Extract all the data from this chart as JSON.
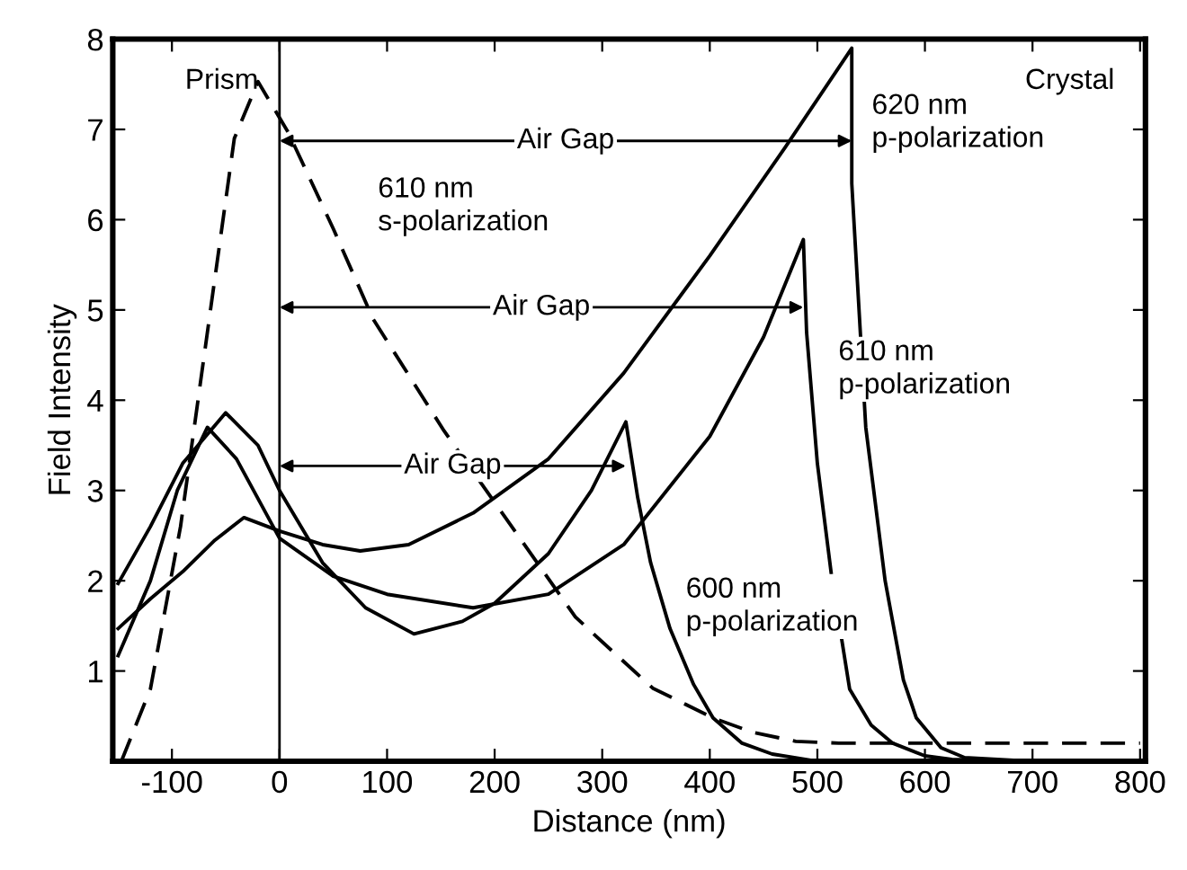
{
  "chart_data": {
    "type": "line",
    "xlabel": "Distance (nm)",
    "ylabel": "Field Intensity",
    "xlim": [
      -155,
      805
    ],
    "ylim": [
      0,
      8
    ],
    "xticks": [
      -100,
      0,
      100,
      200,
      300,
      400,
      500,
      600,
      700,
      800
    ],
    "yticks": [
      1,
      2,
      3,
      4,
      5,
      6,
      7,
      8
    ],
    "grid": false,
    "marker": "none",
    "ref_lines": [
      {
        "axis": "x",
        "value": 0,
        "color": "#000000",
        "line_style": "solid"
      }
    ],
    "annotations": [
      "Prism",
      "Crystal",
      "Air Gap",
      "Air Gap",
      "Air Gap"
    ],
    "series": [
      {
        "name": "620 nm\np-polarization",
        "color": "#000000",
        "line_style": "solid",
        "x": [
          -150,
          -120,
          -90,
          -60,
          -33,
          0,
          40,
          75,
          120,
          180,
          250,
          320,
          400,
          470,
          532,
          532,
          545,
          563,
          580,
          592,
          615,
          637,
          700
        ],
        "values": [
          1.47,
          1.8,
          2.1,
          2.45,
          2.7,
          2.55,
          2.4,
          2.33,
          2.4,
          2.75,
          3.35,
          4.3,
          5.6,
          6.8,
          7.9,
          6.4,
          3.7,
          2.0,
          0.9,
          0.48,
          0.15,
          0.04,
          0.0
        ]
      },
      {
        "name": "610 nm\np-polarization",
        "color": "#000000",
        "line_style": "solid",
        "x": [
          -150,
          -120,
          -95,
          -67,
          -40,
          0,
          50,
          100,
          180,
          250,
          320,
          400,
          450,
          487,
          490,
          500,
          513,
          530,
          550,
          570,
          600,
          625,
          700
        ],
        "values": [
          1.17,
          2.0,
          3.0,
          3.7,
          3.35,
          2.47,
          2.05,
          1.85,
          1.7,
          1.85,
          2.4,
          3.6,
          4.7,
          5.78,
          4.75,
          3.3,
          2.07,
          0.8,
          0.4,
          0.2,
          0.06,
          0.02,
          0.0
        ]
      },
      {
        "name": "600 nm\np-polarization",
        "color": "#000000",
        "line_style": "solid",
        "x": [
          -150,
          -120,
          -90,
          -50,
          -20,
          0,
          40,
          80,
          125,
          170,
          200,
          250,
          290,
          322,
          333,
          345,
          363,
          385,
          403,
          430,
          458,
          500
        ],
        "values": [
          1.97,
          2.6,
          3.3,
          3.86,
          3.5,
          3.0,
          2.2,
          1.7,
          1.41,
          1.55,
          1.75,
          2.3,
          3.0,
          3.76,
          2.92,
          2.2,
          1.47,
          0.85,
          0.48,
          0.2,
          0.08,
          0.0
        ]
      },
      {
        "name": "610 nm\ns-polarization",
        "color": "#000000",
        "line_style": "dashed",
        "x": [
          -147,
          -120,
          -92,
          -63,
          -42,
          -20,
          8,
          50,
          87,
          153,
          220,
          275,
          292,
          347,
          403,
          440,
          480,
          520,
          800
        ],
        "values": [
          0.0,
          0.8,
          2.6,
          5.1,
          6.9,
          7.53,
          6.97,
          5.9,
          4.9,
          3.66,
          2.53,
          1.6,
          1.41,
          0.81,
          0.48,
          0.32,
          0.22,
          0.2,
          0.2
        ]
      }
    ]
  }
}
